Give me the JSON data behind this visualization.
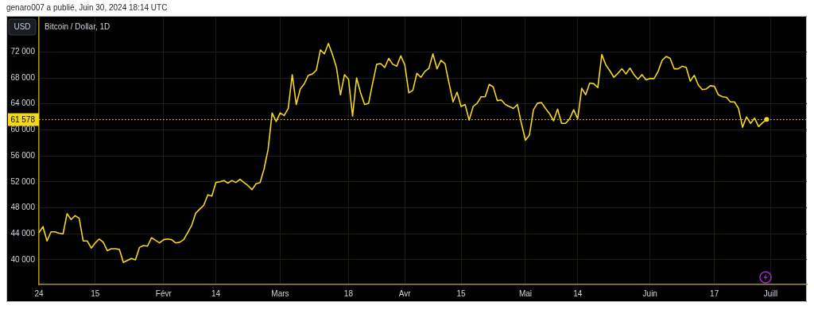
{
  "chart_data": {
    "type": "line",
    "title": "Bitcoin / Dollar, 1D",
    "ylabel": "USD",
    "annotations": [
      "genaro007 a publié, Juin 30, 2024 18:14 UTC"
    ],
    "x": [
      "2024-01-01",
      "2024-01-02",
      "2024-01-03",
      "2024-01-04",
      "2024-01-05",
      "2024-01-06",
      "2024-01-07",
      "2024-01-08",
      "2024-01-09",
      "2024-01-10",
      "2024-01-11",
      "2024-01-12",
      "2024-01-13",
      "2024-01-14",
      "2024-01-15",
      "2024-01-16",
      "2024-01-17",
      "2024-01-18",
      "2024-01-19",
      "2024-01-20",
      "2024-01-21",
      "2024-01-22",
      "2024-01-23",
      "2024-01-24",
      "2024-01-25",
      "2024-01-26",
      "2024-01-27",
      "2024-01-28",
      "2024-01-29",
      "2024-01-30",
      "2024-01-31",
      "2024-02-01",
      "2024-02-02",
      "2024-02-03",
      "2024-02-04",
      "2024-02-05",
      "2024-02-06",
      "2024-02-07",
      "2024-02-08",
      "2024-02-09",
      "2024-02-10",
      "2024-02-11",
      "2024-02-12",
      "2024-02-13",
      "2024-02-14",
      "2024-02-15",
      "2024-02-16",
      "2024-02-17",
      "2024-02-18",
      "2024-02-19",
      "2024-02-20",
      "2024-02-21",
      "2024-02-22",
      "2024-02-23",
      "2024-02-24",
      "2024-02-25",
      "2024-02-26",
      "2024-02-27",
      "2024-02-28",
      "2024-02-29",
      "2024-03-01",
      "2024-03-02",
      "2024-03-03",
      "2024-03-04",
      "2024-03-05",
      "2024-03-06",
      "2024-03-07",
      "2024-03-08",
      "2024-03-09",
      "2024-03-10",
      "2024-03-11",
      "2024-03-12",
      "2024-03-13",
      "2024-03-14",
      "2024-03-15",
      "2024-03-16",
      "2024-03-17",
      "2024-03-18",
      "2024-03-19",
      "2024-03-20",
      "2024-03-21",
      "2024-03-22",
      "2024-03-23",
      "2024-03-24",
      "2024-03-25",
      "2024-03-26",
      "2024-03-27",
      "2024-03-28",
      "2024-03-29",
      "2024-03-30",
      "2024-03-31",
      "2024-04-01",
      "2024-04-02",
      "2024-04-03",
      "2024-04-04",
      "2024-04-05",
      "2024-04-06",
      "2024-04-07",
      "2024-04-08",
      "2024-04-09",
      "2024-04-10",
      "2024-04-11",
      "2024-04-12",
      "2024-04-13",
      "2024-04-14",
      "2024-04-15",
      "2024-04-16",
      "2024-04-17",
      "2024-04-18",
      "2024-04-19",
      "2024-04-20",
      "2024-04-21",
      "2024-04-22",
      "2024-04-23",
      "2024-04-24",
      "2024-04-25",
      "2024-04-26",
      "2024-04-27",
      "2024-04-28",
      "2024-04-29",
      "2024-04-30",
      "2024-05-01",
      "2024-05-02",
      "2024-05-03",
      "2024-05-04",
      "2024-05-05",
      "2024-05-06",
      "2024-05-07",
      "2024-05-08",
      "2024-05-09",
      "2024-05-10",
      "2024-05-11",
      "2024-05-12",
      "2024-05-13",
      "2024-05-14",
      "2024-05-15",
      "2024-05-16",
      "2024-05-17",
      "2024-05-18",
      "2024-05-19",
      "2024-05-20",
      "2024-05-21",
      "2024-05-22",
      "2024-05-23",
      "2024-05-24",
      "2024-05-25",
      "2024-05-26",
      "2024-05-27",
      "2024-05-28",
      "2024-05-29",
      "2024-05-30",
      "2024-05-31",
      "2024-06-01",
      "2024-06-02",
      "2024-06-03",
      "2024-06-04",
      "2024-06-05",
      "2024-06-06",
      "2024-06-07",
      "2024-06-08",
      "2024-06-09",
      "2024-06-10",
      "2024-06-11",
      "2024-06-12",
      "2024-06-13",
      "2024-06-14",
      "2024-06-15",
      "2024-06-16",
      "2024-06-17",
      "2024-06-18",
      "2024-06-19",
      "2024-06-20",
      "2024-06-21",
      "2024-06-22",
      "2024-06-23",
      "2024-06-24",
      "2024-06-25",
      "2024-06-26",
      "2024-06-27",
      "2024-06-28",
      "2024-06-29",
      "2024-06-30"
    ],
    "series": [
      {
        "color": "#f5d81c",
        "values": [
          44200,
          45100,
          42900,
          44300,
          44300,
          44100,
          44000,
          47100,
          46200,
          46800,
          46400,
          42900,
          42900,
          41800,
          42600,
          43200,
          42700,
          41400,
          41700,
          41700,
          41600,
          39600,
          39900,
          40200,
          40000,
          41900,
          42200,
          42100,
          43400,
          43000,
          42600,
          43100,
          43200,
          43100,
          42600,
          42700,
          43100,
          44200,
          45300,
          47200,
          47800,
          48400,
          50000,
          49800,
          51900,
          52000,
          52200,
          51800,
          52200,
          51900,
          52400,
          51900,
          51400,
          50800,
          51700,
          51900,
          54000,
          57000,
          62600,
          61300,
          62600,
          62200,
          63300,
          68500,
          63900,
          66300,
          67100,
          68400,
          68600,
          69200,
          72300,
          71700,
          73300,
          71600,
          69600,
          65400,
          68500,
          67800,
          62100,
          68000,
          65700,
          63900,
          64100,
          67200,
          70100,
          70200,
          69600,
          71000,
          70100,
          69800,
          71400,
          70000,
          65700,
          66100,
          68700,
          68100,
          69000,
          69500,
          71700,
          69400,
          70700,
          70200,
          67200,
          64300,
          65800,
          63600,
          63900,
          61500,
          63600,
          64100,
          65100,
          65100,
          67000,
          66600,
          64500,
          64600,
          63900,
          63600,
          63300,
          63900,
          61000,
          58400,
          59200,
          63100,
          64100,
          64200,
          63300,
          62500,
          61400,
          63200,
          61000,
          61000,
          61700,
          63100,
          61700,
          66400,
          65400,
          67200,
          67100,
          66500,
          71600,
          70000,
          69100,
          68100,
          68700,
          69400,
          68600,
          69500,
          68500,
          67800,
          68500,
          67700,
          67900,
          67900,
          69000,
          70700,
          71300,
          71000,
          69400,
          69400,
          69800,
          69600,
          67500,
          68400,
          66900,
          66200,
          66300,
          66800,
          66700,
          65400,
          65100,
          65000,
          64300,
          64300,
          63300,
          60400,
          62000,
          61000,
          61800,
          60500,
          61100,
          61600
        ]
      },
      {
        "type": "scatter",
        "color": "#f5d81c",
        "x": [
          "2024-06-30"
        ],
        "values": [
          61600
        ]
      }
    ],
    "ref_lines": [
      {
        "axis": "y",
        "value": 61578,
        "label": "61 578",
        "color": "#f5d81c",
        "line_style": "dotted"
      }
    ],
    "xlim": [
      "2024-01-01",
      "2024-07-10"
    ],
    "xticks": [
      {
        "value": "2024-01-01",
        "label": "24"
      },
      {
        "value": "2024-01-15",
        "label": "15"
      },
      {
        "value": "2024-02-01",
        "label": "Févr"
      },
      {
        "value": "2024-02-14",
        "label": "14"
      },
      {
        "value": "2024-03-01",
        "label": "Mars"
      },
      {
        "value": "2024-03-18",
        "label": "18"
      },
      {
        "value": "2024-04-01",
        "label": "Avr"
      },
      {
        "value": "2024-04-15",
        "label": "15"
      },
      {
        "value": "2024-05-01",
        "label": "Mai"
      },
      {
        "value": "2024-05-14",
        "label": "14"
      },
      {
        "value": "2024-06-01",
        "label": "Juin"
      },
      {
        "value": "2024-06-17",
        "label": "17"
      },
      {
        "value": "2024-07-01",
        "label": "Juill"
      }
    ],
    "ylim": [
      36200,
      77300
    ],
    "yticks": [
      {
        "value": 40000,
        "label": "40 000"
      },
      {
        "value": 44000,
        "label": "44 000"
      },
      {
        "value": 48000,
        "label": "48 000"
      },
      {
        "value": 52000,
        "label": "52 000"
      },
      {
        "value": 56000,
        "label": "56 000"
      },
      {
        "value": 60000,
        "label": "60 000"
      },
      {
        "value": 64000,
        "label": "64 000"
      },
      {
        "value": 68000,
        "label": "68 000"
      },
      {
        "value": 72000,
        "label": "72 000"
      }
    ],
    "grid": true
  }
}
